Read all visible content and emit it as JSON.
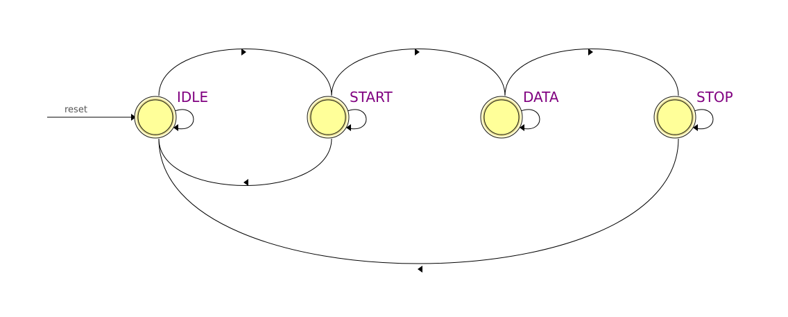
{
  "diagram": {
    "type": "state-machine",
    "reset_label": "reset",
    "initial_state": "IDLE",
    "colors": {
      "state_fill": "#ffff99",
      "state_label": "#800080",
      "edge": "#000000"
    },
    "states": [
      {
        "id": "idle",
        "label": "IDLE"
      },
      {
        "id": "start",
        "label": "START"
      },
      {
        "id": "data",
        "label": "DATA"
      },
      {
        "id": "stop",
        "label": "STOP"
      }
    ],
    "transitions": [
      {
        "from": "IDLE",
        "to": "IDLE"
      },
      {
        "from": "IDLE",
        "to": "START"
      },
      {
        "from": "START",
        "to": "START"
      },
      {
        "from": "START",
        "to": "IDLE"
      },
      {
        "from": "START",
        "to": "DATA"
      },
      {
        "from": "DATA",
        "to": "DATA"
      },
      {
        "from": "DATA",
        "to": "STOP"
      },
      {
        "from": "STOP",
        "to": "STOP"
      },
      {
        "from": "STOP",
        "to": "IDLE"
      }
    ]
  }
}
